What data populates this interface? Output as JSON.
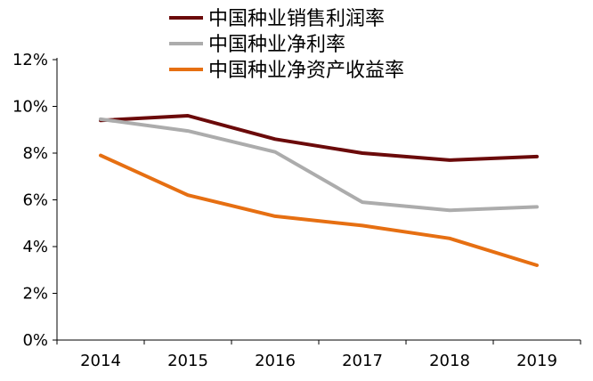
{
  "chart_data": {
    "type": "line",
    "title": "",
    "xlabel": "",
    "ylabel": "",
    "categories": [
      "2014",
      "2015",
      "2016",
      "2017",
      "2018",
      "2019"
    ],
    "ylim": [
      0,
      12
    ],
    "yticks": [
      0,
      2,
      4,
      6,
      8,
      10,
      12
    ],
    "ytick_labels": [
      "0%",
      "2%",
      "4%",
      "6%",
      "8%",
      "10%",
      "12%"
    ],
    "grid": false,
    "legend_position": "top",
    "series": [
      {
        "name": "中国种业销售利润率",
        "color": "#6B0A0A",
        "values": [
          9.4,
          9.6,
          8.6,
          8.0,
          7.7,
          7.85
        ]
      },
      {
        "name": "中国种业净利率",
        "color": "#ACACAC",
        "values": [
          9.45,
          8.95,
          8.05,
          5.9,
          5.55,
          5.7
        ]
      },
      {
        "name": "中国种业净资产收益率",
        "color": "#E66F12",
        "values": [
          7.9,
          6.2,
          5.3,
          4.9,
          4.35,
          3.2
        ]
      }
    ]
  }
}
